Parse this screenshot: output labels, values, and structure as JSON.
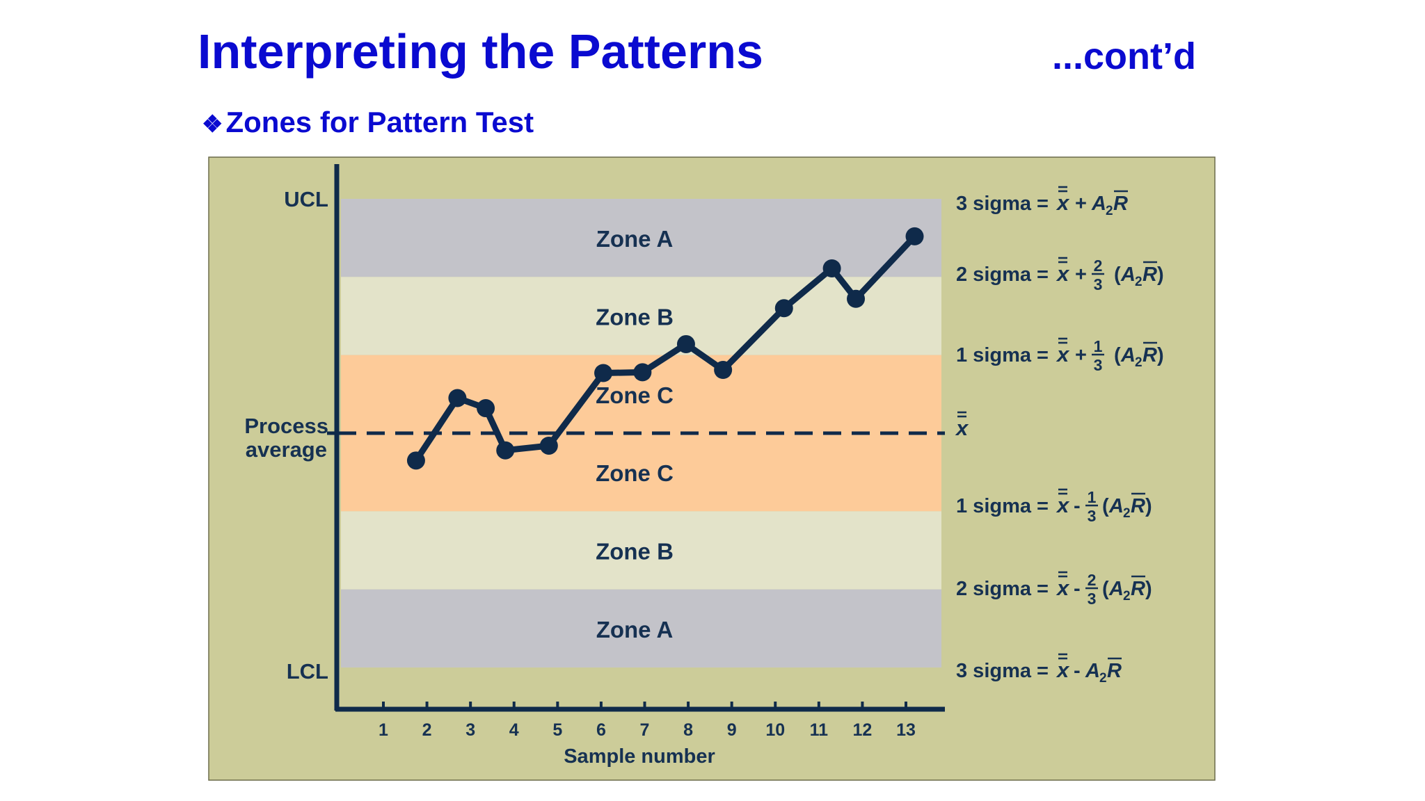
{
  "header": {
    "title": "Interpreting the Patterns",
    "cont": "...cont’d",
    "subtitle_bullet": "❖",
    "subtitle": "Zones for Pattern Test"
  },
  "chart_data": {
    "type": "line",
    "x": [
      1.75,
      2.7,
      3.35,
      3.8,
      4.8,
      6.05,
      6.95,
      7.95,
      8.8,
      10.2,
      11.3,
      11.85,
      13.2
    ],
    "y": [
      -0.35,
      0.45,
      0.32,
      -0.22,
      -0.16,
      0.77,
      0.78,
      1.14,
      0.81,
      1.6,
      2.11,
      1.72,
      2.52
    ],
    "x_ticks": [
      1,
      2,
      3,
      4,
      5,
      6,
      7,
      8,
      9,
      10,
      11,
      12,
      13
    ],
    "xlim": [
      -0.1,
      14.3
    ],
    "ylim": [
      -3,
      3
    ],
    "xlabel": "Sample number",
    "ylabels": {
      "ucl": "UCL",
      "center_line1": "Process",
      "center_line2": "average",
      "lcl": "LCL"
    },
    "zones": [
      {
        "label": "Zone A",
        "from": 2,
        "to": 3,
        "color": "#c3c3c9"
      },
      {
        "label": "Zone B",
        "from": 1,
        "to": 2,
        "color": "#e3e3c9"
      },
      {
        "label": "Zone C",
        "from": 0,
        "to": 1,
        "color": "#fdcb99"
      },
      {
        "label": "Zone C",
        "from": -1,
        "to": 0,
        "color": "#fdcb99"
      },
      {
        "label": "Zone B",
        "from": -2,
        "to": -1,
        "color": "#e3e3c9"
      },
      {
        "label": "Zone A",
        "from": -3,
        "to": -2,
        "color": "#c3c3c9"
      }
    ],
    "limit_formulas": [
      {
        "level": 3,
        "label": "3 sigma =",
        "sign": "+",
        "frac": "",
        "paren": false
      },
      {
        "level": 2,
        "label": "2 sigma =",
        "sign": "+",
        "frac": "2/3",
        "paren": true
      },
      {
        "level": 1,
        "label": "1 sigma =",
        "sign": "+",
        "frac": "1/3",
        "paren": true
      },
      {
        "level": 0,
        "label": "",
        "sign": "",
        "frac": "",
        "paren": false
      },
      {
        "level": -1,
        "label": "1 sigma =",
        "sign": "-",
        "frac": "1/3",
        "paren": true
      },
      {
        "level": -2,
        "label": "2 sigma =",
        "sign": "-",
        "frac": "2/3",
        "paren": true
      },
      {
        "level": -3,
        "label": "3 sigma =",
        "sign": "-",
        "frac": "",
        "paren": false
      }
    ],
    "colors": {
      "panel": "#cccc99",
      "ink": "#163152",
      "line": "#0f2a4a"
    }
  }
}
